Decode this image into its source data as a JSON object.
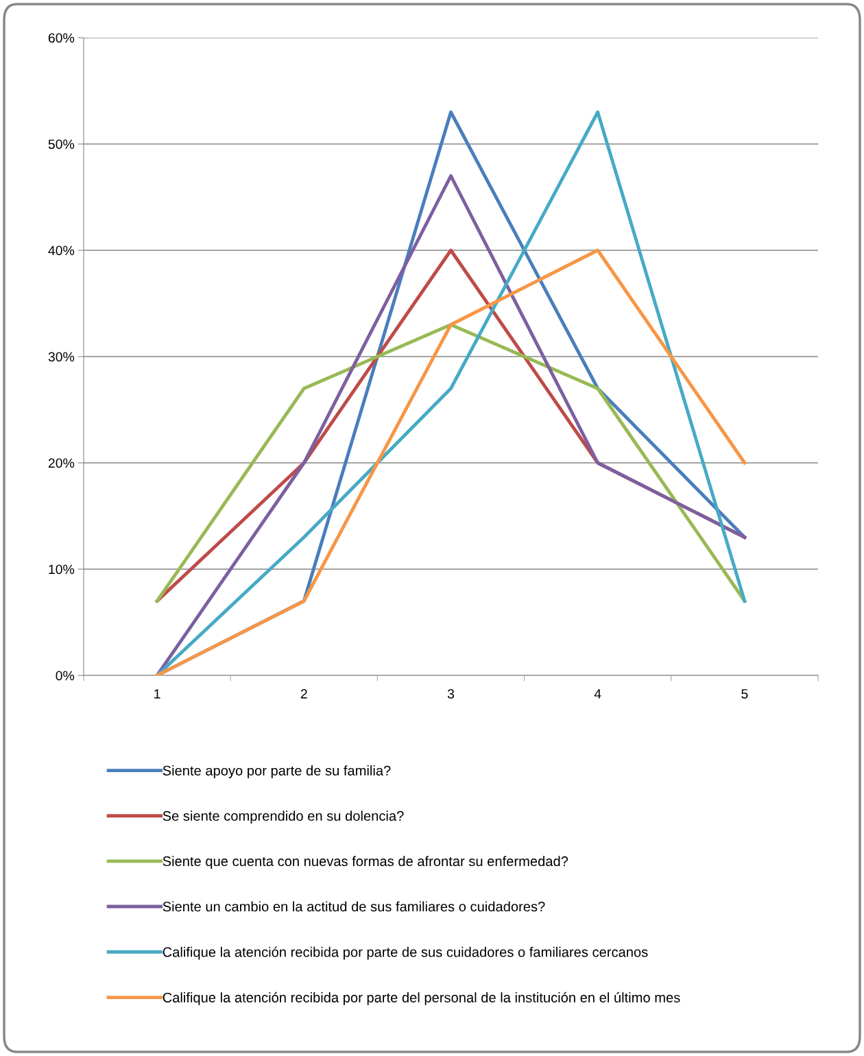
{
  "chart_data": {
    "type": "line",
    "categories": [
      "1",
      "2",
      "3",
      "4",
      "5"
    ],
    "series": [
      {
        "name": "Siente apoyo por parte de su familia?",
        "color": "#4a7ebb",
        "values": [
          0,
          7,
          53,
          27,
          13
        ]
      },
      {
        "name": "Se siente comprendido en su dolencia?",
        "color": "#be4b48",
        "values": [
          7,
          20,
          40,
          20,
          13
        ]
      },
      {
        "name": "Siente que cuenta con nuevas formas de afrontar su enfermedad?",
        "color": "#98b954",
        "values": [
          7,
          27,
          33,
          27,
          7
        ]
      },
      {
        "name": "Siente un cambio en la actitud de sus familiares o cuidadores?",
        "color": "#7d5fa0",
        "values": [
          0,
          20,
          47,
          20,
          13
        ]
      },
      {
        "name": "Califique la atención recibida por parte de sus cuidadores o familiares cercanos",
        "color": "#46aac5",
        "values": [
          0,
          13,
          27,
          53,
          7
        ]
      },
      {
        "name": "Califique la atención recibida por parte del personal de la institución en el último mes",
        "color": "#f79646",
        "values": [
          0,
          7,
          33,
          40,
          20
        ]
      }
    ],
    "ylim": [
      0,
      60
    ],
    "yticks": [
      {
        "value": 0,
        "label": "0%"
      },
      {
        "value": 10,
        "label": "10%"
      },
      {
        "value": 20,
        "label": "20%"
      },
      {
        "value": 30,
        "label": "30%"
      },
      {
        "value": 40,
        "label": "40%"
      },
      {
        "value": 50,
        "label": "50%"
      },
      {
        "value": 60,
        "label": "60%"
      }
    ],
    "grid": "y",
    "legend": "bottom",
    "marker": "none",
    "line_style": "solid"
  }
}
